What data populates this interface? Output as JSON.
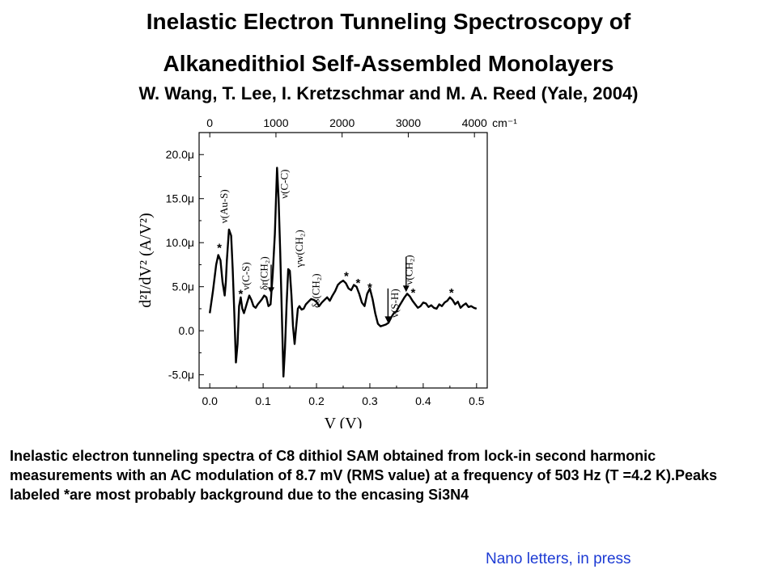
{
  "slide": {
    "title_line1": "Inelastic Electron Tunneling Spectroscopy of",
    "title_line2": "Alkanedithiol Self-Assembled Monolayers",
    "authors": "W. Wang, T. Lee, I. Kretzschmar and M. A. Reed (Yale, 2004)",
    "caption": "Inelastic electron tunneling spectra of C8 dithiol SAM obtained from lock-in second harmonic measurements with an AC modulation of 8.7 mV (RMS value) at a frequency of 503 Hz (T =4.2 K).Peaks labeled *are most probably background due to the encasing Si3N4",
    "citation": "Nano letters, in press"
  },
  "chart_data": {
    "type": "line",
    "title": "",
    "xlabel": "V (V)",
    "ylabel": "d²I/dV² (A/V²)",
    "xlim": [
      -0.02,
      0.52
    ],
    "ylim": [
      -6.5,
      22.5
    ],
    "x_ticks": [
      {
        "v": 0.0,
        "label": "0.0"
      },
      {
        "v": 0.1,
        "label": "0.1"
      },
      {
        "v": 0.2,
        "label": "0.2"
      },
      {
        "v": 0.3,
        "label": "0.3"
      },
      {
        "v": 0.4,
        "label": "0.4"
      },
      {
        "v": 0.5,
        "label": "0.5"
      }
    ],
    "y_ticks": [
      {
        "v": -5,
        "label": "-5.0μ"
      },
      {
        "v": 0,
        "label": "0.0"
      },
      {
        "v": 5,
        "label": "5.0μ"
      },
      {
        "v": 10,
        "label": "10.0μ"
      },
      {
        "v": 15,
        "label": "15.0μ"
      },
      {
        "v": 20,
        "label": "20.0μ"
      }
    ],
    "top_axis": {
      "unit_label": "cm⁻¹",
      "ticks": [
        {
          "v": 0.0,
          "label": "0"
        },
        {
          "v": 0.124,
          "label": "1000"
        },
        {
          "v": 0.248,
          "label": "2000"
        },
        {
          "v": 0.372,
          "label": "3000"
        },
        {
          "v": 0.496,
          "label": "4000"
        }
      ]
    },
    "series": [
      {
        "name": "",
        "x": [
          0.0,
          0.006,
          0.012,
          0.016,
          0.02,
          0.024,
          0.028,
          0.03,
          0.032,
          0.036,
          0.04,
          0.043,
          0.046,
          0.049,
          0.052,
          0.055,
          0.058,
          0.061,
          0.064,
          0.067,
          0.07,
          0.074,
          0.078,
          0.082,
          0.086,
          0.09,
          0.094,
          0.098,
          0.102,
          0.106,
          0.11,
          0.114,
          0.118,
          0.122,
          0.126,
          0.129,
          0.132,
          0.135,
          0.138,
          0.141,
          0.144,
          0.147,
          0.15,
          0.153,
          0.156,
          0.159,
          0.162,
          0.165,
          0.168,
          0.172,
          0.176,
          0.18,
          0.185,
          0.19,
          0.195,
          0.2,
          0.205,
          0.21,
          0.215,
          0.22,
          0.225,
          0.23,
          0.235,
          0.24,
          0.245,
          0.25,
          0.255,
          0.26,
          0.265,
          0.27,
          0.275,
          0.28,
          0.285,
          0.29,
          0.295,
          0.3,
          0.305,
          0.31,
          0.315,
          0.32,
          0.325,
          0.33,
          0.335,
          0.34,
          0.345,
          0.35,
          0.355,
          0.36,
          0.365,
          0.37,
          0.375,
          0.38,
          0.385,
          0.39,
          0.395,
          0.4,
          0.405,
          0.41,
          0.415,
          0.42,
          0.425,
          0.43,
          0.435,
          0.44,
          0.445,
          0.45,
          0.455,
          0.46,
          0.465,
          0.47,
          0.475,
          0.48,
          0.485,
          0.49,
          0.495,
          0.5
        ],
        "y": [
          2.0,
          4.5,
          7.5,
          8.6,
          8.0,
          5.5,
          4.0,
          5.5,
          8.0,
          11.5,
          10.8,
          7.0,
          2.0,
          -3.6,
          -1.5,
          2.8,
          3.8,
          2.5,
          2.0,
          2.6,
          3.2,
          4.0,
          3.5,
          2.8,
          2.6,
          3.0,
          3.3,
          3.6,
          4.0,
          3.8,
          2.8,
          3.0,
          6.5,
          11.0,
          18.5,
          15.0,
          9.0,
          2.0,
          -5.2,
          -2.0,
          3.0,
          7.0,
          6.8,
          4.0,
          0.5,
          -1.5,
          0.5,
          2.5,
          2.8,
          2.4,
          2.5,
          3.0,
          3.3,
          3.6,
          3.5,
          3.3,
          2.8,
          3.2,
          3.5,
          3.8,
          3.4,
          4.0,
          4.5,
          5.2,
          5.5,
          5.7,
          5.4,
          4.8,
          4.6,
          5.2,
          5.0,
          4.2,
          3.2,
          2.8,
          4.2,
          4.8,
          3.6,
          2.0,
          0.8,
          0.5,
          0.6,
          0.7,
          0.9,
          1.5,
          2.0,
          2.2,
          2.8,
          3.3,
          3.8,
          4.2,
          3.9,
          3.4,
          3.0,
          2.6,
          2.8,
          3.2,
          3.1,
          2.7,
          2.9,
          2.6,
          2.5,
          3.0,
          2.8,
          3.2,
          3.4,
          3.8,
          3.5,
          3.0,
          3.3,
          2.6,
          2.9,
          3.1,
          2.7,
          2.8,
          2.6,
          2.5
        ],
        "color": "#000000"
      }
    ],
    "annotations": [
      {
        "text": "ν(Au-S)",
        "x": 0.033,
        "y": 12.2
      },
      {
        "text": "ν(C-S)",
        "x": 0.074,
        "y": 4.6
      },
      {
        "text": "δr(CH₂)",
        "x": 0.108,
        "y": 4.6
      },
      {
        "text": "ν(C-C)",
        "x": 0.146,
        "y": 15.0
      },
      {
        "text": "γw(CH₂)",
        "x": 0.174,
        "y": 7.2
      },
      {
        "text": "δs(CH₂)",
        "x": 0.205,
        "y": 2.6
      },
      {
        "text": "ν(S-H)",
        "x": 0.353,
        "y": 1.5
      },
      {
        "text": "ν(CH₂)",
        "x": 0.38,
        "y": 5.2
      }
    ],
    "stars": [
      {
        "x": 0.018,
        "y": 9.5
      },
      {
        "x": 0.058,
        "y": 4.3
      },
      {
        "x": 0.256,
        "y": 6.3
      },
      {
        "x": 0.278,
        "y": 5.5
      },
      {
        "x": 0.3,
        "y": 5.0
      },
      {
        "x": 0.381,
        "y": 4.4
      },
      {
        "x": 0.453,
        "y": 4.4
      }
    ],
    "arrows": [
      {
        "x": 0.115,
        "y_from": 7.5,
        "y_to": 4.2
      },
      {
        "x": 0.334,
        "y_from": 4.8,
        "y_to": 0.9
      },
      {
        "x": 0.368,
        "y_from": 8.4,
        "y_to": 4.4
      }
    ],
    "grid": false,
    "legend": "none"
  }
}
